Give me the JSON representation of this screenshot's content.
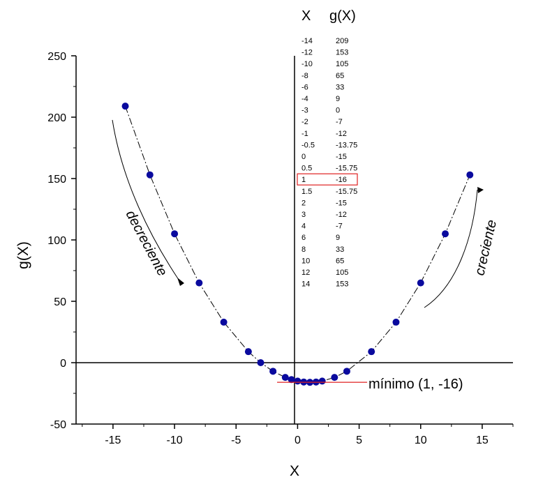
{
  "chart_data": {
    "type": "scatter",
    "title": "",
    "xlabel": "X",
    "ylabel": "g(X)",
    "xlim": [
      -18,
      17.5
    ],
    "ylim": [
      -50,
      250
    ],
    "xticks": [
      -15,
      -10,
      -5,
      0,
      5,
      10,
      15
    ],
    "yticks": [
      -50,
      0,
      50,
      100,
      150,
      200,
      250
    ],
    "xtick_labels": [
      "-15",
      "-10",
      "-5",
      "0",
      "5",
      "10",
      "15"
    ],
    "ytick_labels": [
      "-50",
      "0",
      "50",
      "100",
      "150",
      "200",
      "250"
    ],
    "grid": false,
    "series": [
      {
        "marker_color": "#0a0a9e",
        "line": "dash-dot",
        "points": [
          {
            "x": -14,
            "y": 209
          },
          {
            "x": -12,
            "y": 153
          },
          {
            "x": -10,
            "y": 105
          },
          {
            "x": -8,
            "y": 65
          },
          {
            "x": -6,
            "y": 33
          },
          {
            "x": -4,
            "y": 9
          },
          {
            "x": -3,
            "y": 0
          },
          {
            "x": -2,
            "y": -7
          },
          {
            "x": -1,
            "y": -12
          },
          {
            "x": -0.5,
            "y": -13.75
          },
          {
            "x": 0,
            "y": -15
          },
          {
            "x": 0.5,
            "y": -15.75
          },
          {
            "x": 1,
            "y": -16
          },
          {
            "x": 1.5,
            "y": -15.75
          },
          {
            "x": 2,
            "y": -15
          },
          {
            "x": 3,
            "y": -12
          },
          {
            "x": 4,
            "y": -7
          },
          {
            "x": 6,
            "y": 9
          },
          {
            "x": 8,
            "y": 33
          },
          {
            "x": 10,
            "y": 65
          },
          {
            "x": 12,
            "y": 105
          },
          {
            "x": 14,
            "y": 153
          }
        ]
      }
    ],
    "table": {
      "header_x": "X",
      "header_y": "g(X)",
      "highlight_row": 12,
      "rows": [
        [
          "-14",
          "209"
        ],
        [
          "-12",
          "153"
        ],
        [
          "-10",
          "105"
        ],
        [
          "-8",
          "65"
        ],
        [
          "-6",
          "33"
        ],
        [
          "-4",
          "9"
        ],
        [
          "-3",
          "0"
        ],
        [
          "-2",
          "-7"
        ],
        [
          "-1",
          "-12"
        ],
        [
          "-0.5",
          "-13.75"
        ],
        [
          "0",
          "-15"
        ],
        [
          "0.5",
          "-15.75"
        ],
        [
          "1",
          "-16"
        ],
        [
          "1.5",
          "-15.75"
        ],
        [
          "2",
          "-15"
        ],
        [
          "3",
          "-12"
        ],
        [
          "4",
          "-7"
        ],
        [
          "6",
          "9"
        ],
        [
          "8",
          "33"
        ],
        [
          "10",
          "65"
        ],
        [
          "12",
          "105"
        ],
        [
          "14",
          "153"
        ]
      ]
    },
    "annotations": {
      "decreasing": "decreciente",
      "increasing": "creciente",
      "minimum": "mínimo (1, -16)"
    },
    "colors": {
      "marker": "#0a0a9e",
      "min_line": "#e02020",
      "highlight_box": "#e02020",
      "axes": "#000000"
    }
  }
}
